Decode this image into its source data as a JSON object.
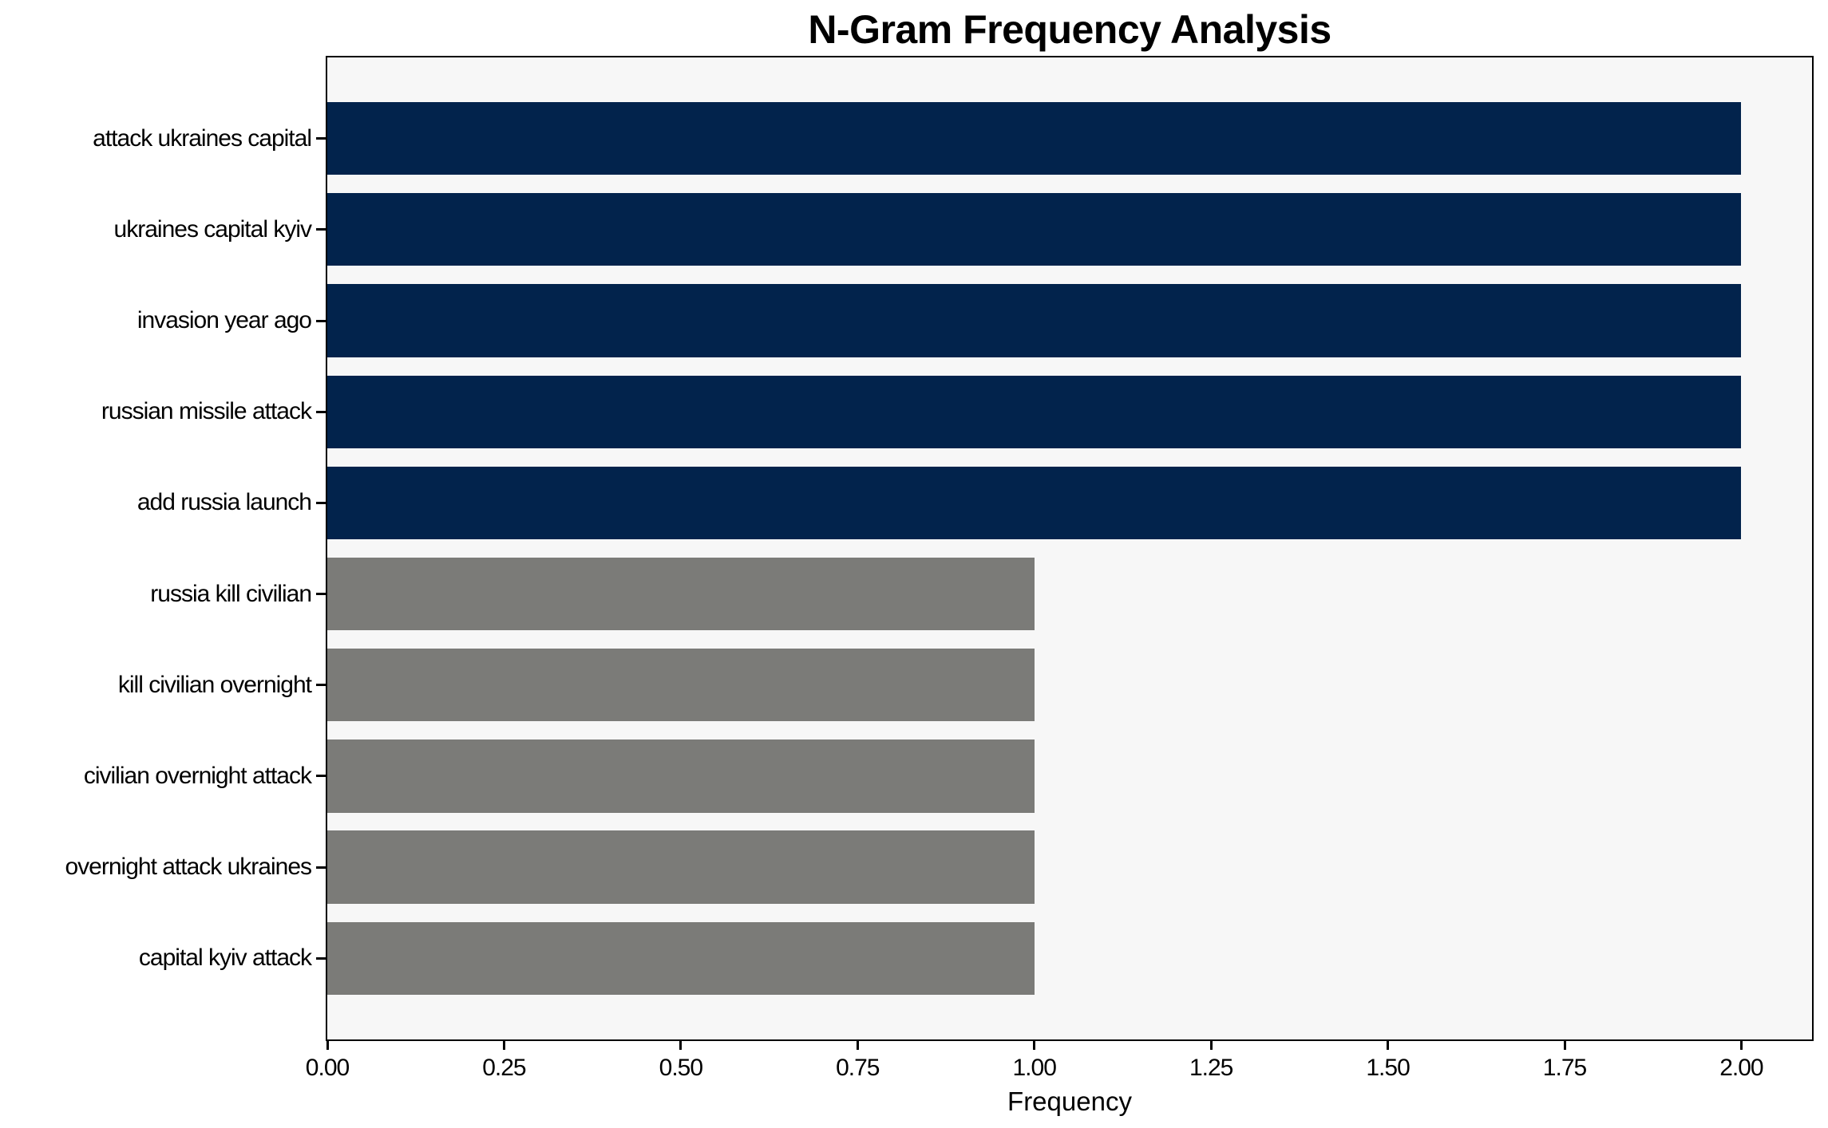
{
  "title": "N-Gram Frequency Analysis",
  "colors": {
    "bar_high": "#02234c",
    "bar_low": "#7b7b78",
    "plot_background": "#f7f7f7",
    "figure_background": "#ffffff",
    "axis": "#000000",
    "text": "#000000"
  },
  "chart_data": {
    "type": "bar",
    "orientation": "horizontal",
    "title": "N-Gram Frequency Analysis",
    "xlabel": "Frequency",
    "ylabel": "",
    "categories": [
      "attack ukraines capital",
      "ukraines capital kyiv",
      "invasion year ago",
      "russian missile attack",
      "add russia launch",
      "russia kill civilian",
      "kill civilian overnight",
      "civilian overnight attack",
      "overnight attack ukraines",
      "capital kyiv attack"
    ],
    "values": [
      2,
      2,
      2,
      2,
      2,
      1,
      1,
      1,
      1,
      1
    ],
    "bar_colors": [
      "#02234c",
      "#02234c",
      "#02234c",
      "#02234c",
      "#02234c",
      "#7b7b78",
      "#7b7b78",
      "#7b7b78",
      "#7b7b78",
      "#7b7b78"
    ],
    "xlim": [
      0,
      2.1
    ],
    "xticks": [
      0,
      0.25,
      0.5,
      0.75,
      1.0,
      1.25,
      1.5,
      1.75,
      2.0
    ],
    "xtick_labels": [
      "0.00",
      "0.25",
      "0.50",
      "0.75",
      "1.00",
      "1.25",
      "1.50",
      "1.75",
      "2.00"
    ],
    "grid": false,
    "legend": null
  }
}
